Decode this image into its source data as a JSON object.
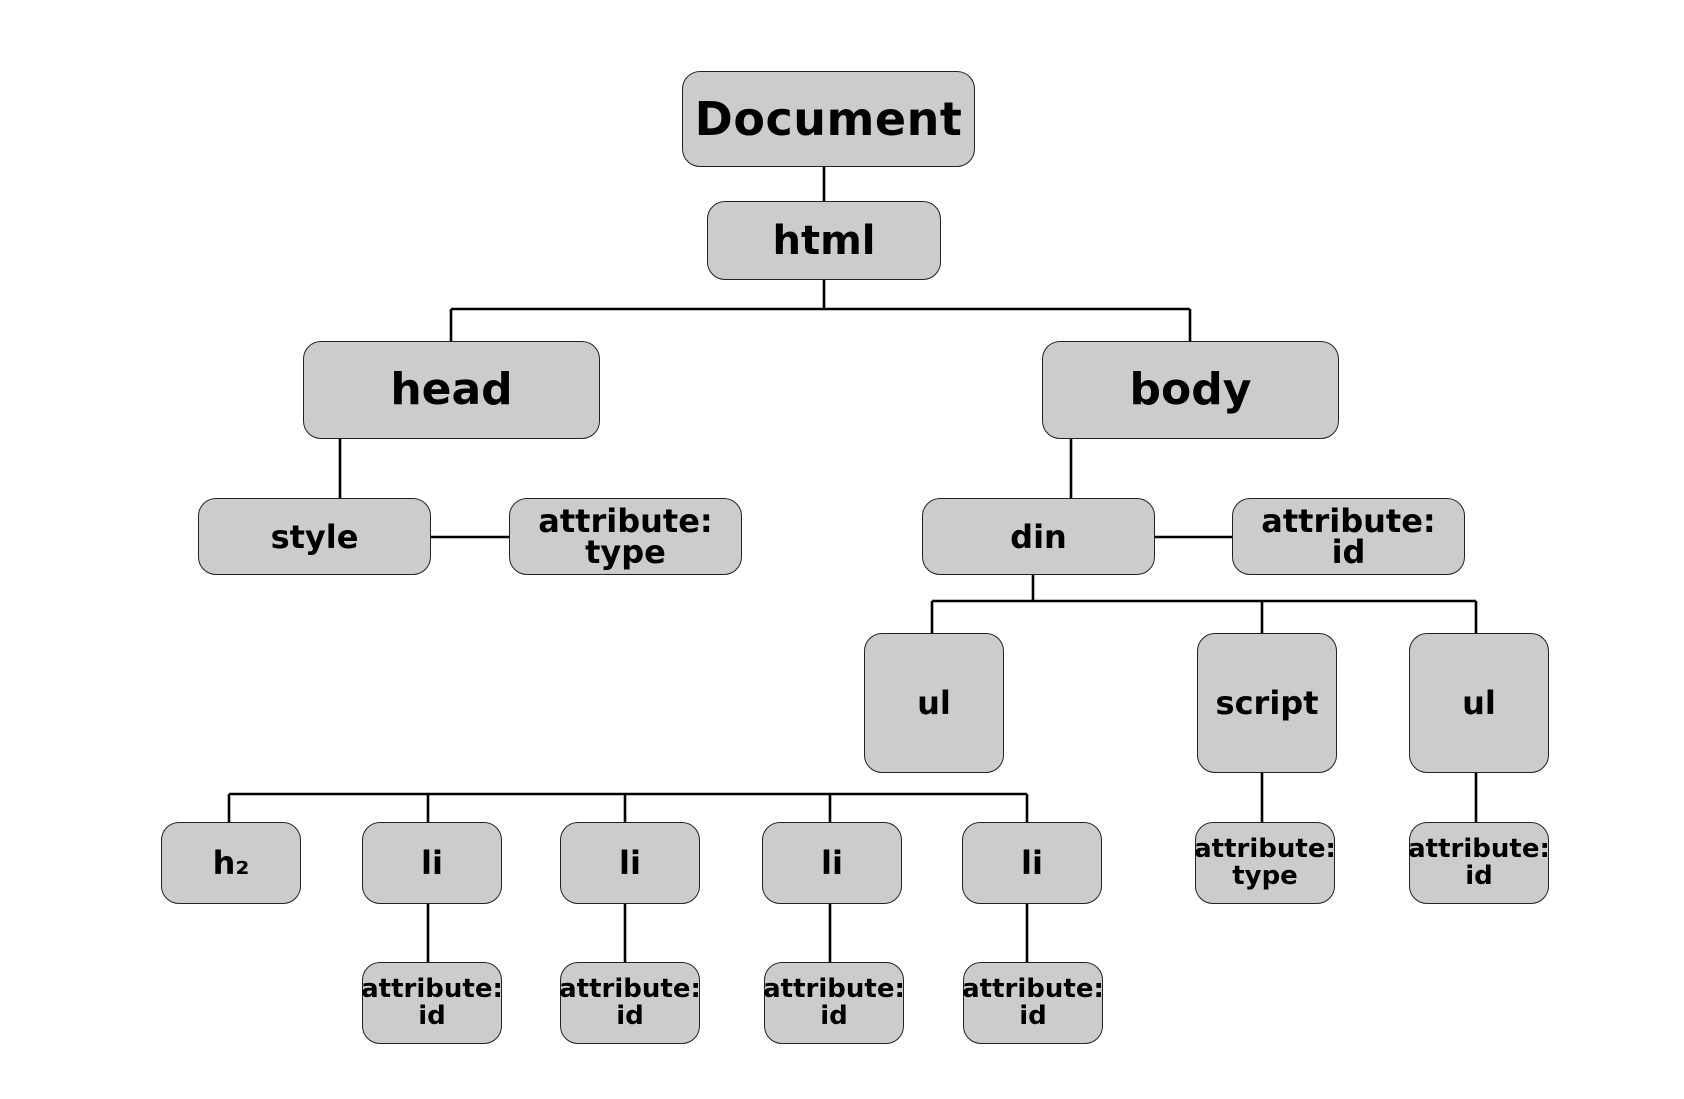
{
  "nodes": {
    "document": "Document",
    "html": "html",
    "head": "head",
    "body": "body",
    "style": "style",
    "style_attr": [
      "attribute:",
      "type"
    ],
    "din": "din",
    "din_attr": [
      "attribute:",
      "id"
    ],
    "ul_left": "ul",
    "script": "script",
    "ul_right": "ul",
    "h2": "h₂",
    "li_1": "li",
    "li_2": "li",
    "li_3": "li",
    "li_4": "li",
    "li_1_attr": [
      "attribute:",
      "id"
    ],
    "li_2_attr": [
      "attribute:",
      "id"
    ],
    "li_3_attr": [
      "attribute:",
      "id"
    ],
    "li_4_attr": [
      "attribute:",
      "id"
    ],
    "script_attr": [
      "attribute:",
      "type"
    ],
    "ul_right_attr": [
      "attribute:",
      "id"
    ]
  },
  "colors": {
    "node_fill": "#cccccc",
    "node_border": "#222222",
    "connector": "#000000",
    "background": "#ffffff"
  }
}
